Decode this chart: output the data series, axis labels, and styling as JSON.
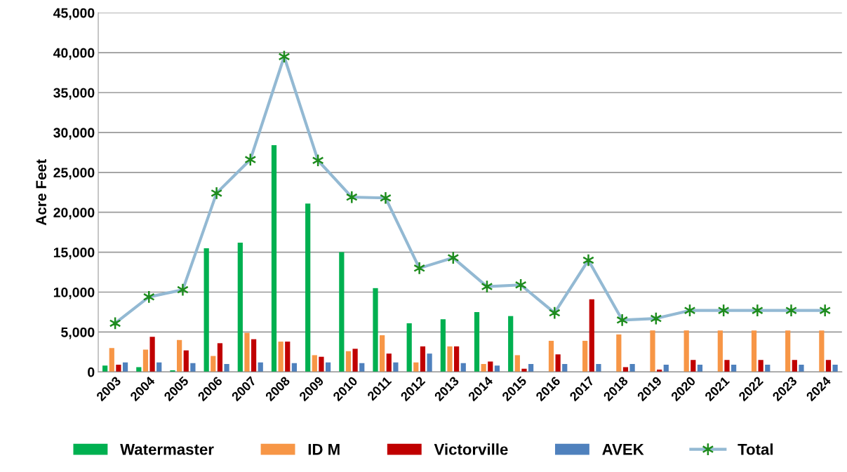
{
  "chart_data": {
    "type": "bar",
    "ylabel": "Acre Feet",
    "categories": [
      "2003",
      "2004",
      "2005",
      "2006",
      "2007",
      "2008",
      "2009",
      "2010",
      "2011",
      "2012",
      "2013",
      "2014",
      "2015",
      "2016",
      "2017",
      "2018",
      "2019",
      "2020",
      "2021",
      "2022",
      "2023",
      "2024"
    ],
    "series": [
      {
        "name": "Watermaster",
        "color": "#00b050",
        "values": [
          800,
          600,
          200,
          15500,
          16200,
          28400,
          21100,
          15000,
          10500,
          6100,
          6600,
          7500,
          7000,
          null,
          null,
          null,
          null,
          null,
          null,
          null,
          null,
          null
        ]
      },
      {
        "name": "ID M",
        "color": "#f79646",
        "values": [
          3000,
          2800,
          4000,
          2000,
          4900,
          3800,
          2100,
          2600,
          4600,
          1200,
          3200,
          1000,
          2100,
          3900,
          3900,
          4700,
          5200,
          5200,
          5200,
          5200,
          5200,
          5200
        ]
      },
      {
        "name": "Victorville",
        "color": "#c00000",
        "values": [
          900,
          4400,
          2700,
          3600,
          4100,
          3800,
          1900,
          2900,
          2300,
          3200,
          3200,
          1300,
          400,
          2200,
          9100,
          600,
          300,
          1500,
          1500,
          1500,
          1500,
          1500
        ]
      },
      {
        "name": "AVEK",
        "color": "#4f81bd",
        "values": [
          1200,
          1200,
          1100,
          1000,
          1200,
          1100,
          1200,
          1100,
          1200,
          2300,
          1100,
          800,
          1000,
          1000,
          1000,
          1000,
          900,
          900,
          900,
          900,
          900,
          900
        ]
      },
      {
        "name": "Total",
        "type": "line",
        "color": "#93b9d3",
        "marker": "cross",
        "values": [
          6100,
          9400,
          10300,
          22400,
          26600,
          39500,
          26500,
          21900,
          21800,
          13000,
          14300,
          10700,
          10900,
          7400,
          14000,
          6500,
          6700,
          7700,
          7700,
          7700,
          7700,
          7700
        ]
      }
    ],
    "ylim": [
      0,
      45000
    ],
    "yticks": [
      {
        "value": 0,
        "label": "0"
      },
      {
        "value": 5000,
        "label": "5,000"
      },
      {
        "value": 10000,
        "label": "10,000"
      },
      {
        "value": 15000,
        "label": "15,000"
      },
      {
        "value": 20000,
        "label": "20,000"
      },
      {
        "value": 25000,
        "label": "25,000"
      },
      {
        "value": 30000,
        "label": "30,000"
      },
      {
        "value": 35000,
        "label": "35,000"
      },
      {
        "value": 40000,
        "label": "40,000"
      },
      {
        "value": 45000,
        "label": "45,000"
      }
    ],
    "grid": "y",
    "legend": "bottom"
  }
}
